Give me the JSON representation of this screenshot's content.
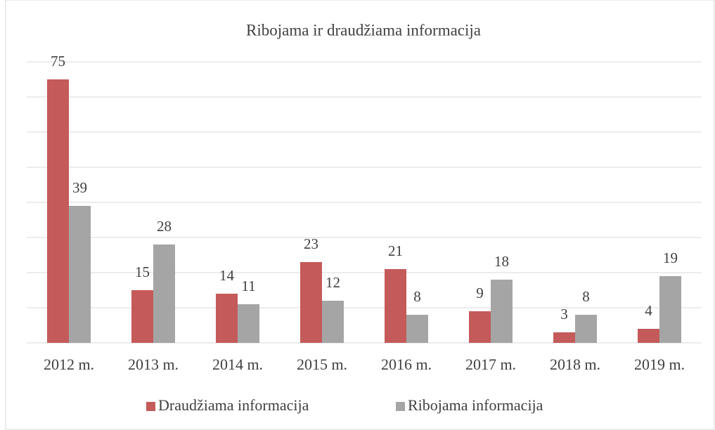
{
  "chart_data": {
    "type": "bar",
    "title": "Ribojama ir draudžiama informacija",
    "categories": [
      "2012 m.",
      "2013 m.",
      "2014 m.",
      "2015 m.",
      "2016 m.",
      "2017 m.",
      "2018 m.",
      "2019 m."
    ],
    "series": [
      {
        "name": "Draudžiama informacija",
        "color": "#c55a5a",
        "values": [
          75,
          15,
          14,
          23,
          21,
          9,
          3,
          4
        ]
      },
      {
        "name": "Ribojama informacija",
        "color": "#a5a5a5",
        "values": [
          39,
          28,
          11,
          12,
          8,
          18,
          8,
          19
        ]
      }
    ],
    "ylim": [
      0,
      80
    ],
    "yticks": [
      0,
      10,
      20,
      30,
      40,
      50,
      60,
      70,
      80
    ],
    "grid": true,
    "legend": "bottom"
  }
}
